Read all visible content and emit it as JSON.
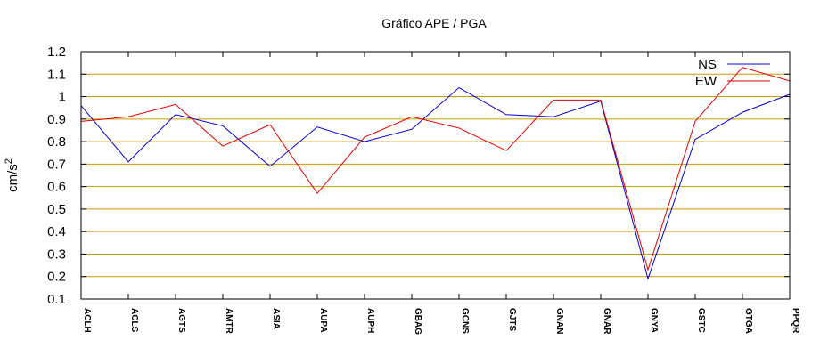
{
  "chart_data": {
    "type": "line",
    "title": "Gráfico  APE / PGA",
    "ylabel": "cm/s",
    "ylabel_superscript": "2",
    "ylim": [
      0.1,
      1.2
    ],
    "yticks": [
      "0.1",
      "0.2",
      "0.3",
      "0.4",
      "0.5",
      "0.6",
      "0.7",
      "0.8",
      "0.9",
      "1",
      "1.1",
      "1.2"
    ],
    "grid": true,
    "legend_position": "top-right",
    "categories": [
      "ACLH",
      "ACLS",
      "AGTS",
      "AMTR",
      "ASIA",
      "AUPA",
      "AUPH",
      "GBAG",
      "GCNS",
      "GJTS",
      "GNAN",
      "GNAR",
      "GNYA",
      "GSTC",
      "GTGA",
      "PPQR"
    ],
    "series": [
      {
        "name": "NS",
        "color": "#0000cc",
        "values": [
          0.96,
          0.71,
          0.92,
          0.87,
          0.69,
          0.865,
          0.8,
          0.855,
          1.04,
          0.92,
          0.91,
          0.98,
          0.19,
          0.81,
          0.93,
          1.01
        ]
      },
      {
        "name": "EW",
        "color": "#dd0000",
        "values": [
          0.89,
          0.91,
          0.965,
          0.78,
          0.875,
          0.57,
          0.82,
          0.91,
          0.86,
          0.76,
          0.985,
          0.985,
          0.23,
          0.89,
          1.13,
          1.07
        ]
      }
    ],
    "grid_color": "#cc9900"
  }
}
